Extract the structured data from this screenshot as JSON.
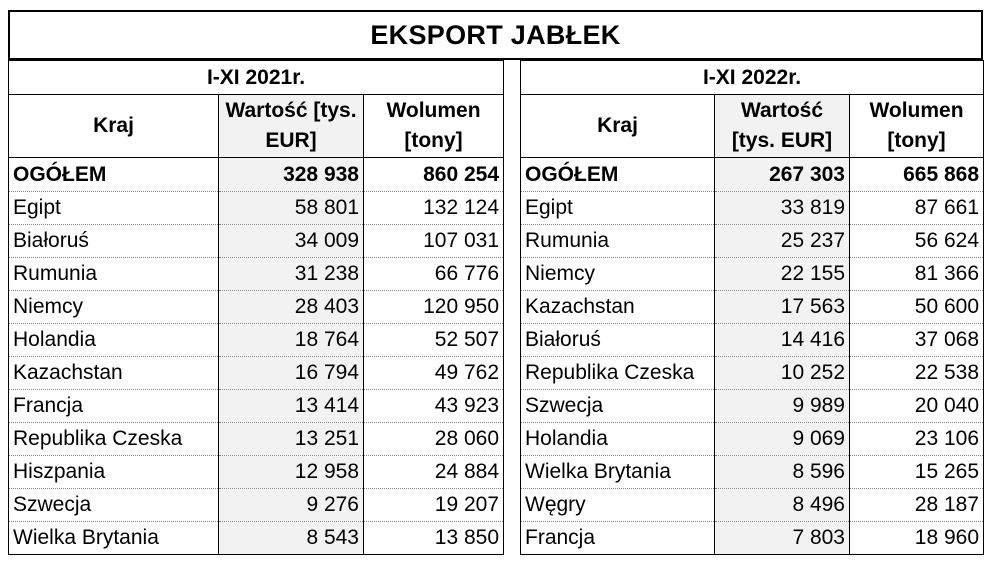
{
  "title": "EKSPORT JABŁEK",
  "left": {
    "period": "I-XI 2021r.",
    "col_country": "Kraj",
    "col_value": "Wartość [tys. EUR]",
    "col_volume": "Wolumen [tony]",
    "total": {
      "country": "OGÓŁEM",
      "value": "328 938",
      "volume": "860 254"
    },
    "rows": [
      {
        "country": "Egipt",
        "value": "58 801",
        "volume": "132 124"
      },
      {
        "country": "Białoruś",
        "value": "34 009",
        "volume": "107 031"
      },
      {
        "country": "Rumunia",
        "value": "31 238",
        "volume": "66 776"
      },
      {
        "country": "Niemcy",
        "value": "28 403",
        "volume": "120 950"
      },
      {
        "country": "Holandia",
        "value": "18 764",
        "volume": "52 507"
      },
      {
        "country": "Kazachstan",
        "value": "16 794",
        "volume": "49 762"
      },
      {
        "country": "Francja",
        "value": "13 414",
        "volume": "43 923"
      },
      {
        "country": "Republika Czeska",
        "value": "13 251",
        "volume": "28 060"
      },
      {
        "country": "Hiszpania",
        "value": "12 958",
        "volume": "24 884"
      },
      {
        "country": "Szwecja",
        "value": "9 276",
        "volume": "19 207"
      },
      {
        "country": "Wielka Brytania",
        "value": "8 543",
        "volume": "13 850"
      }
    ]
  },
  "right": {
    "period": "I-XI 2022r.",
    "col_country": "Kraj",
    "col_value": "Wartość [tys. EUR]",
    "col_volume": "Wolumen [tony]",
    "total": {
      "country": "OGÓŁEM",
      "value": "267 303",
      "volume": "665 868"
    },
    "rows": [
      {
        "country": "Egipt",
        "value": "33 819",
        "volume": "87 661"
      },
      {
        "country": "Rumunia",
        "value": "25 237",
        "volume": "56 624"
      },
      {
        "country": "Niemcy",
        "value": "22 155",
        "volume": "81 366"
      },
      {
        "country": "Kazachstan",
        "value": "17 563",
        "volume": "50 600"
      },
      {
        "country": "Białoruś",
        "value": "14 416",
        "volume": "37 068"
      },
      {
        "country": "Republika Czeska",
        "value": "10 252",
        "volume": "22 538"
      },
      {
        "country": "Szwecja",
        "value": "9 989",
        "volume": "20 040"
      },
      {
        "country": "Holandia",
        "value": "9 069",
        "volume": "23 106"
      },
      {
        "country": "Wielka Brytania",
        "value": "8 596",
        "volume": "15 265"
      },
      {
        "country": "Węgry",
        "value": "8 496",
        "volume": "28 187"
      },
      {
        "country": "Francja",
        "value": "7 803",
        "volume": "18 960"
      }
    ]
  }
}
